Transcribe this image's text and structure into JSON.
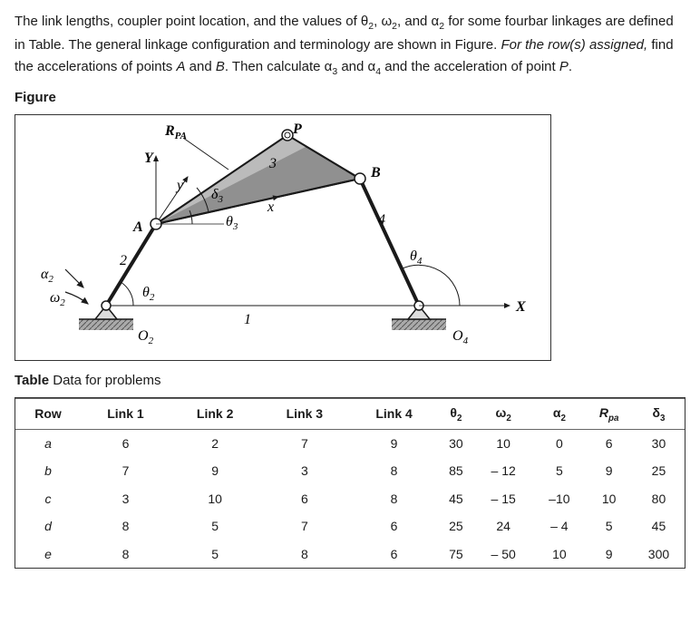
{
  "problem": {
    "line1_part1": "The link lengths, coupler point location, and the values of ",
    "line1_theta2": "θ",
    "line1_theta2_sub": "2",
    "line1_part2": ", ",
    "line1_omega2": "ω",
    "line1_omega2_sub": "2",
    "line1_part3": ", and ",
    "line1_alpha2": "α",
    "line1_alpha2_sub": "2",
    "line1_part4": " for some fourbar",
    "line2": "linkages are defined in Table. The general linkage configuration and terminology are shown in",
    "line3_part1": "Figure. ",
    "line3_italic": "For the row(s) assigned,",
    "line3_part2": " find the accelerations of points ",
    "line3_A": "A",
    "line3_and": " and ",
    "line3_B": "B",
    "line3_part3": ". Then calculate ",
    "line3_alpha3": "α",
    "line3_alpha3_sub": "3",
    "line3_part4": " and",
    "line4_alpha4": "α",
    "line4_alpha4_sub": "4",
    "line4_part2": " and the acceleration of point ",
    "line4_P": "P",
    "line4_part3": "."
  },
  "figure_heading": "Figure",
  "table_heading_prefix": "Table ",
  "table_heading_rest": "Data for problems",
  "figure": {
    "labels": {
      "Rpa": "R",
      "Rpa_sub": "PA",
      "P": "P",
      "Y": "Y",
      "y": "y",
      "x": "x",
      "B": "B",
      "A": "A",
      "d3": "δ",
      "d3_sub": "3",
      "t3": "θ",
      "t3_sub": "3",
      "t2": "θ",
      "t2_sub": "2",
      "t4": "θ",
      "t4_sub": "4",
      "a2": "α",
      "a2_sub": "2",
      "w2": "ω",
      "w2_sub": "2",
      "O2": "O",
      "O2_sub": "2",
      "O4": "O",
      "O4_sub": "4",
      "X": "X",
      "n1": "1",
      "n2": "2",
      "n3": "3",
      "n4": "4"
    },
    "colors": {
      "stroke": "#1a1a1a",
      "triangle_fill": "#808080",
      "triangle_fill_light": "#b0b0b0",
      "ground_fill": "#888888"
    }
  },
  "table": {
    "columns": [
      "Row",
      "Link 1",
      "Link 2",
      "Link 3",
      "Link 4",
      "θ₂",
      "ω₂",
      "α₂",
      "Rₚₐ",
      "δ₃"
    ],
    "col_specs": [
      {
        "text": "Row",
        "html": "Row"
      },
      {
        "text": "Link 1",
        "html": "Link 1"
      },
      {
        "text": "Link 2",
        "html": "Link 2"
      },
      {
        "text": "Link 3",
        "html": "Link 3"
      },
      {
        "text": "Link 4",
        "html": "Link 4"
      },
      {
        "text": "θ2",
        "sym": "θ",
        "sub": "2"
      },
      {
        "text": "ω2",
        "sym": "ω",
        "sub": "2"
      },
      {
        "text": "α2",
        "sym": "α",
        "sub": "2"
      },
      {
        "text": "Rpa",
        "sym": "R",
        "sub": "pa",
        "italic_sub": true
      },
      {
        "text": "δ3",
        "sym": "δ",
        "sub": "3"
      }
    ],
    "rows": [
      {
        "label": "a",
        "cells": [
          "6",
          "2",
          "7",
          "9",
          "30",
          "10",
          "0",
          "6",
          "30"
        ]
      },
      {
        "label": "b",
        "cells": [
          "7",
          "9",
          "3",
          "8",
          "85",
          "– 12",
          "5",
          "9",
          "25"
        ]
      },
      {
        "label": "c",
        "cells": [
          "3",
          "10",
          "6",
          "8",
          "45",
          "– 15",
          "–10",
          "10",
          "80"
        ]
      },
      {
        "label": "d",
        "cells": [
          "8",
          "5",
          "7",
          "6",
          "25",
          "24",
          "– 4",
          "5",
          "45"
        ]
      },
      {
        "label": "e",
        "cells": [
          "8",
          "5",
          "8",
          "6",
          "75",
          "– 50",
          "10",
          "9",
          "300"
        ]
      }
    ]
  }
}
